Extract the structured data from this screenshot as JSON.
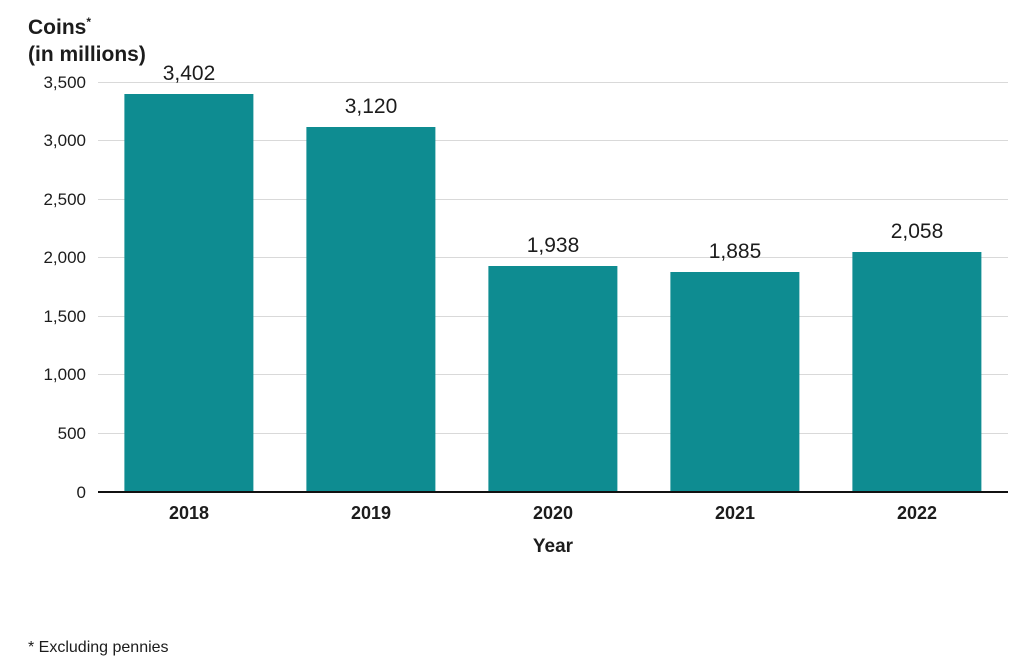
{
  "title": {
    "word": "Coins",
    "asterisk": "*",
    "line2": "(in millions)"
  },
  "footnote": "* Excluding pennies",
  "colors": {
    "bar": "#0e8c91",
    "grid": "#d9d9d9",
    "baseline": "#111111",
    "text": "#1c1c1c"
  },
  "chart_data": {
    "type": "bar",
    "title": "Coins* (in millions)",
    "categories": [
      "2018",
      "2019",
      "2020",
      "2021",
      "2022"
    ],
    "values": [
      3402,
      3120,
      1938,
      1885,
      2058
    ],
    "value_labels": [
      "3,402",
      "3,120",
      "1,938",
      "1,885",
      "2,058"
    ],
    "xlabel": "Year",
    "ylabel": "Coins (in millions)",
    "ylim": [
      0,
      3500
    ],
    "ytick_step": 500,
    "ytick_labels": [
      "0",
      "500",
      "1,000",
      "1,500",
      "2,000",
      "2,500",
      "3,000",
      "3,500"
    ],
    "grid": true,
    "legend": false,
    "bar_color": "#0e8c91"
  }
}
